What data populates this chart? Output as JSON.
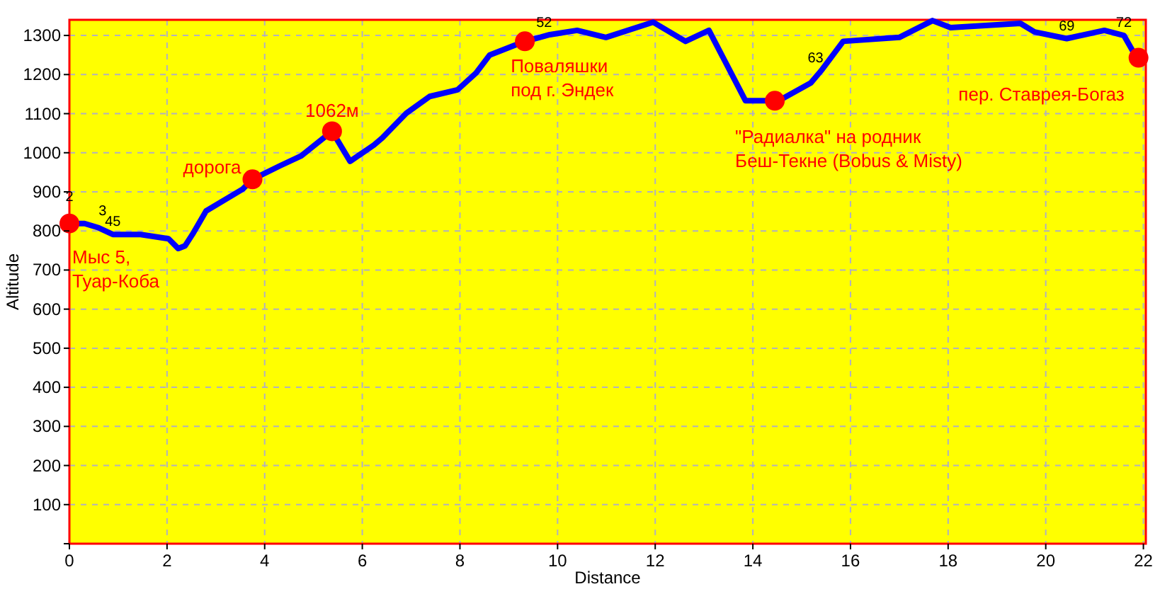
{
  "chart_data": {
    "type": "line",
    "xlabel": "Distance",
    "ylabel": "Altitude",
    "xlim": [
      0,
      22.05
    ],
    "ylim": [
      0,
      1340
    ],
    "xticks": [
      0,
      2,
      4,
      6,
      8,
      10,
      12,
      14,
      16,
      18,
      20,
      22
    ],
    "yticks": [
      {
        "value": 0,
        "label": null
      },
      100,
      200,
      300,
      400,
      500,
      600,
      700,
      800,
      900,
      1000,
      1100,
      1200,
      1300
    ],
    "grid": true,
    "series": [
      {
        "color": "#0000ff",
        "marker": "none",
        "x": [
          0,
          0.31,
          0.6,
          0.89,
          1.46,
          2.03,
          2.23,
          2.37,
          2.52,
          2.8,
          3.55,
          3.75,
          4.32,
          4.75,
          5.38,
          5.75,
          6.24,
          6.41,
          6.9,
          7.38,
          7.95,
          8.33,
          8.61,
          9.1,
          9.33,
          9.84,
          10.4,
          10.99,
          11.96,
          12.62,
          13.1,
          13.85,
          14.53,
          15.19,
          15.4,
          15.85,
          17.0,
          17.68,
          18.05,
          19.48,
          19.77,
          20.43,
          21.2,
          21.6,
          21.86
        ],
        "values": [
          819,
          819,
          808,
          791,
          791,
          780,
          755,
          762,
          791,
          851,
          907,
          932,
          967,
          992,
          1055,
          978,
          1020,
          1038,
          1101,
          1144,
          1161,
          1204,
          1250,
          1274,
          1285,
          1302,
          1313,
          1295,
          1334,
          1285,
          1313,
          1133,
          1133,
          1179,
          1210,
          1285,
          1295,
          1338,
          1320,
          1331,
          1309,
          1292,
          1313,
          1300,
          1243
        ]
      },
      {
        "type": "scatter",
        "color": "#ff0000",
        "marker": "circle",
        "x": [
          0,
          3.75,
          5.38,
          9.33,
          14.45,
          21.9
        ],
        "values": [
          819,
          932,
          1055,
          1285,
          1133,
          1243
        ]
      }
    ],
    "annotations": [
      {
        "text": "Мыс 5,\nТуар-Коба",
        "x": 0,
        "y": 819
      },
      {
        "text": "дорога",
        "x": 3.75,
        "y": 932
      },
      {
        "text": "1062м",
        "x": 5.38,
        "y": 1055
      },
      {
        "text": "Поваляшки\nпод г. Эндек",
        "x": 9.33,
        "y": 1285
      },
      {
        "text": "\"Радиалка\" на родник\nБеш-Текне (Bobus & Misty)",
        "x": 14.45,
        "y": 1133
      },
      {
        "text": "пер. Ставрея-Богаз",
        "x": 21.9,
        "y": 1243
      },
      {
        "text": "2",
        "x": 0,
        "y": 819
      },
      {
        "text": "3",
        "x": 0.31,
        "y": 819
      },
      {
        "text": "45",
        "x": 0.89,
        "y": 791
      },
      {
        "text": "52",
        "x": 9.33,
        "y": 1285
      },
      {
        "text": "63",
        "x": 15.4,
        "y": 1210
      },
      {
        "text": "69",
        "x": 20.43,
        "y": 1292
      },
      {
        "text": "72",
        "x": 21.6,
        "y": 1300
      }
    ]
  }
}
